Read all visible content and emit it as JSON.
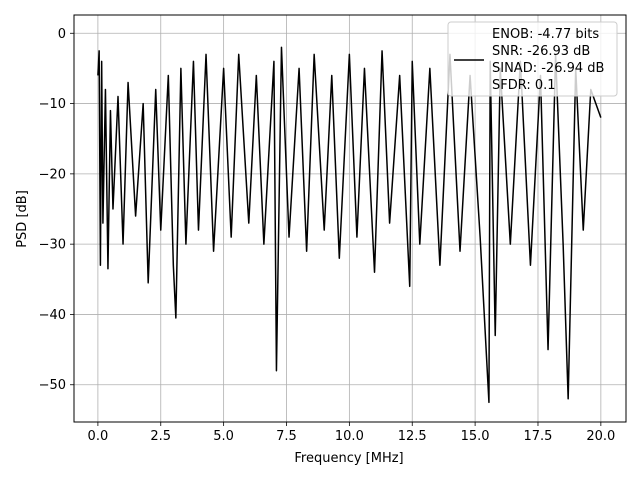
{
  "chart_data": {
    "type": "line",
    "title": "",
    "xlabel": "Frequency [MHz]",
    "ylabel": "PSD [dB]",
    "xlim": [
      -0.95,
      21.0
    ],
    "ylim": [
      -55.3,
      2.6
    ],
    "grid": true,
    "legend_placement": "top-right",
    "x_ticks": [
      0.0,
      2.5,
      5.0,
      7.5,
      10.0,
      12.5,
      15.0,
      17.5,
      20.0
    ],
    "x_tick_labels": [
      "0.0",
      "2.5",
      "5.0",
      "7.5",
      "10.0",
      "12.5",
      "15.0",
      "17.5",
      "20.0"
    ],
    "y_ticks": [
      0,
      -10,
      -20,
      -30,
      -40,
      -50
    ],
    "y_tick_labels": [
      "0",
      "−10",
      "−20",
      "−30",
      "−40",
      "−50"
    ],
    "series_color": "#000000",
    "legend": {
      "enob": "ENOB: -4.77 bits",
      "snr": "SNR: -26.93 dB",
      "sinad": "SINAD: -26.94 dB",
      "sfdr": "SFDR: 0.1"
    },
    "series": [
      {
        "x": [
          0.0,
          0.05,
          0.1,
          0.15,
          0.2,
          0.3,
          0.4,
          0.5,
          0.6,
          0.8,
          1.0,
          1.2,
          1.5,
          1.8,
          2.0,
          2.3,
          2.5,
          2.8,
          3.0,
          3.1,
          3.3,
          3.5,
          3.8,
          4.0,
          4.3,
          4.6,
          5.0,
          5.3,
          5.6,
          6.0,
          6.3,
          6.6,
          7.0,
          7.1,
          7.3,
          7.6,
          8.0,
          8.3,
          8.6,
          9.0,
          9.3,
          9.6,
          10.0,
          10.3,
          10.6,
          11.0,
          11.3,
          11.6,
          12.0,
          12.4,
          12.5,
          12.8,
          13.2,
          13.6,
          14.0,
          14.4,
          14.8,
          15.2,
          15.55,
          15.6,
          15.8,
          16.0,
          16.4,
          16.8,
          17.2,
          17.6,
          17.9,
          18.2,
          18.5,
          18.7,
          19.0,
          19.3,
          19.6,
          20.0
        ],
        "y": [
          -6,
          -2.5,
          -33,
          -4,
          -27,
          -8,
          -33.5,
          -11,
          -25,
          -9,
          -30,
          -7,
          -26,
          -10,
          -35.5,
          -8,
          -28,
          -6,
          -33,
          -40.5,
          -5,
          -30,
          -4,
          -28,
          -3,
          -31,
          -5,
          -29,
          -3,
          -27,
          -6,
          -30,
          -4,
          -48,
          -2,
          -29,
          -5,
          -31,
          -3,
          -28,
          -6,
          -32,
          -3,
          -29,
          -5,
          -34,
          -2.5,
          -27,
          -6,
          -36,
          -4,
          -30,
          -5,
          -33,
          -3,
          -31,
          -6,
          -29,
          -52.5,
          -4,
          -43,
          -5,
          -30,
          -4,
          -33,
          -6,
          -45,
          -3,
          -30,
          -52,
          -5,
          -28,
          -8,
          -12
        ]
      }
    ]
  }
}
